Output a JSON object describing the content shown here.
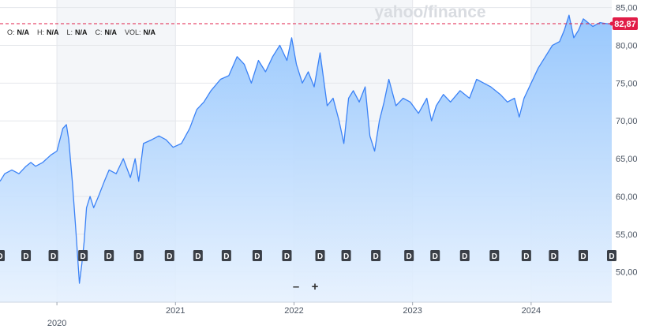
{
  "watermark": {
    "text_left": "yahoo",
    "slash": "/",
    "text_right": "finance"
  },
  "ohlc": [
    {
      "key": "O:",
      "val": "N/A"
    },
    {
      "key": "H:",
      "val": "N/A"
    },
    {
      "key": "L:",
      "val": "N/A"
    },
    {
      "key": "C:",
      "val": "N/A"
    },
    {
      "key": "VOL:",
      "val": "N/A"
    }
  ],
  "zoom": {
    "minus": "–",
    "plus": "+"
  },
  "colors": {
    "line": "#3b82f6",
    "fill_top": "#93c5fd",
    "fill_bottom": "#e6f1fe",
    "last_badge": "#e11d48",
    "dashed": "#e11d48",
    "grid": "#e5e7eb",
    "dividend": "#3a3f47",
    "band": "#f4f6f9"
  },
  "chart_data": {
    "type": "area",
    "ylim": [
      46,
      86
    ],
    "y_ticks": [
      "85,00",
      "80,00",
      "75,00",
      "70,00",
      "65,00",
      "60,00",
      "55,00",
      "50,00"
    ],
    "y_tick_values": [
      85,
      80,
      75,
      70,
      65,
      60,
      55,
      50
    ],
    "x_labels": [
      "2020",
      "2021",
      "2022",
      "2023",
      "2024"
    ],
    "x_label_values": [
      2020.0,
      2021.0,
      2022.0,
      2023.0,
      2024.0
    ],
    "last_value": 82.87,
    "last_label": "82,87",
    "dividend_marker": "D",
    "dividend_dates": [
      2019.52,
      2019.74,
      2019.97,
      2020.22,
      2020.44,
      2020.69,
      2020.95,
      2021.19,
      2021.43,
      2021.69,
      2021.94,
      2022.22,
      2022.44,
      2022.69,
      2022.97,
      2023.19,
      2023.44,
      2023.69,
      2023.96,
      2024.19,
      2024.44,
      2024.68
    ],
    "series": [
      {
        "x": [
          2019.52,
          2019.56,
          2019.62,
          2019.68,
          2019.74,
          2019.78,
          2019.82,
          2019.88,
          2019.95,
          2020.0,
          2020.05,
          2020.08,
          2020.1,
          2020.13,
          2020.16,
          2020.19,
          2020.21,
          2020.23,
          2020.25,
          2020.28,
          2020.31,
          2020.35,
          2020.4,
          2020.44,
          2020.5,
          2020.56,
          2020.62,
          2020.66,
          2020.69,
          2020.73,
          2020.8,
          2020.86,
          2020.92,
          2020.98,
          2021.05,
          2021.12,
          2021.18,
          2021.24,
          2021.3,
          2021.38,
          2021.45,
          2021.52,
          2021.58,
          2021.64,
          2021.7,
          2021.76,
          2021.82,
          2021.88,
          2021.94,
          2021.98,
          2022.02,
          2022.07,
          2022.12,
          2022.17,
          2022.22,
          2022.28,
          2022.33,
          2022.38,
          2022.42,
          2022.46,
          2022.5,
          2022.55,
          2022.6,
          2022.64,
          2022.68,
          2022.72,
          2022.76,
          2022.8,
          2022.86,
          2022.92,
          2022.98,
          2023.05,
          2023.12,
          2023.16,
          2023.2,
          2023.26,
          2023.32,
          2023.4,
          2023.48,
          2023.54,
          2023.6,
          2023.66,
          2023.74,
          2023.8,
          2023.86,
          2023.9,
          2023.94,
          2024.0,
          2024.06,
          2024.12,
          2024.18,
          2024.24,
          2024.28,
          2024.32,
          2024.36,
          2024.4,
          2024.44,
          2024.48,
          2024.52,
          2024.58,
          2024.64,
          2024.68
        ],
        "y": [
          62.0,
          63.0,
          63.5,
          63.0,
          64.0,
          64.5,
          64.0,
          64.5,
          65.5,
          66.0,
          69.0,
          69.5,
          67.5,
          62.0,
          55.5,
          48.5,
          51.0,
          54.0,
          58.5,
          60.0,
          58.5,
          60.0,
          62.0,
          63.5,
          63.0,
          65.0,
          62.5,
          65.0,
          62.0,
          67.0,
          67.5,
          68.0,
          67.5,
          66.5,
          67.0,
          69.0,
          71.5,
          72.5,
          74.0,
          75.5,
          76.0,
          78.5,
          77.5,
          75.0,
          78.0,
          76.5,
          78.5,
          80.0,
          78.0,
          81.0,
          77.5,
          75.0,
          76.5,
          74.5,
          79.0,
          72.0,
          73.0,
          70.0,
          67.0,
          73.0,
          74.0,
          72.5,
          74.5,
          68.0,
          66.0,
          70.0,
          72.5,
          75.5,
          72.0,
          73.0,
          72.5,
          71.0,
          73.0,
          70.0,
          72.0,
          73.5,
          72.5,
          74.0,
          73.0,
          75.5,
          75.0,
          74.5,
          73.5,
          72.5,
          73.0,
          70.5,
          73.0,
          75.0,
          77.0,
          78.5,
          80.0,
          80.5,
          82.0,
          84.0,
          81.0,
          82.0,
          83.5,
          83.0,
          82.5,
          83.0,
          82.87,
          82.87
        ]
      }
    ]
  }
}
